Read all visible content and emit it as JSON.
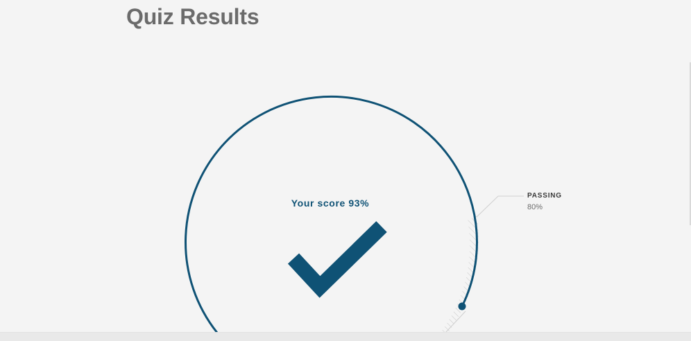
{
  "page": {
    "title": "Quiz Results"
  },
  "score": {
    "label": "Your score 93%",
    "value_percent": 93,
    "status_icon": "checkmark-icon"
  },
  "passing": {
    "label": "PASSING",
    "value": "80%",
    "value_percent": 80
  },
  "colors": {
    "accent": "#0f5275",
    "title": "#6b6b6b",
    "background": "#f4f4f4",
    "hatch": "#c8c8c8"
  }
}
